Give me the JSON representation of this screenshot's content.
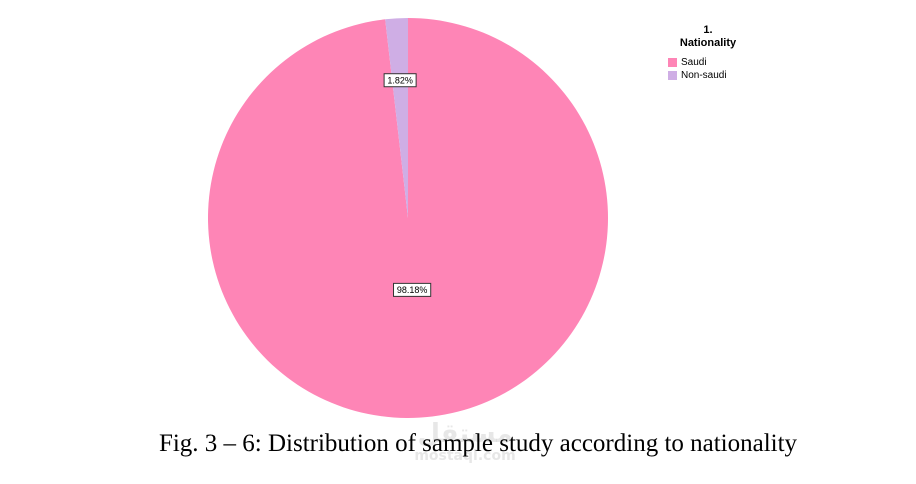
{
  "chart_data": {
    "type": "pie",
    "legend_title_line1": "1.",
    "legend_title_line2": "Nationality",
    "legend_position": "top-right",
    "slices": [
      {
        "label": "Saudi",
        "value": 98.18,
        "display": "98.18%",
        "color": "#fe85b6"
      },
      {
        "label": "Non-saudi",
        "value": 1.82,
        "display": "1.82%",
        "color": "#cfaee5"
      }
    ]
  },
  "caption": "Fig. 3 – 6: Distribution of sample study according to nationality",
  "watermark": {
    "main": "مستقل",
    "sub": "mostaql.com"
  }
}
